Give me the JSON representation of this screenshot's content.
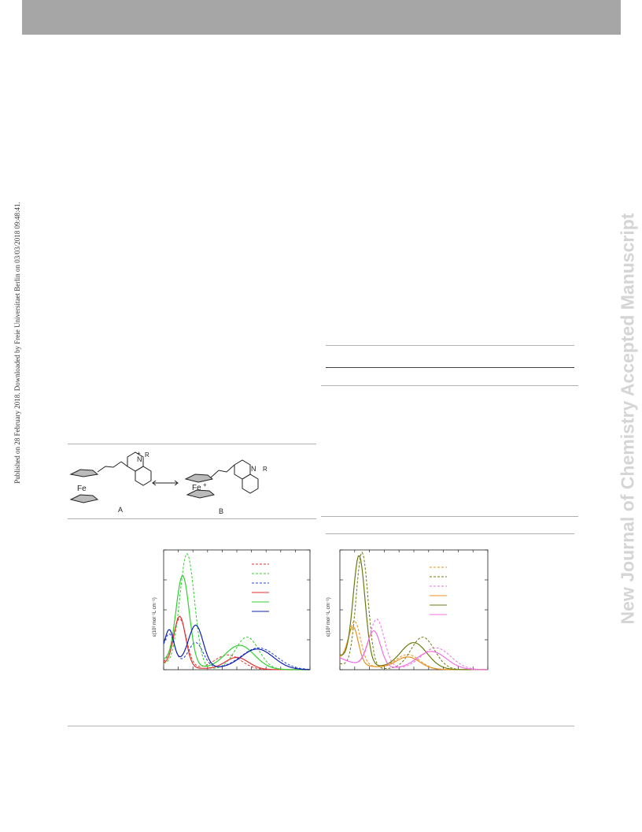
{
  "header": {
    "bar_color": "#a6a6a6"
  },
  "side_note": "Published on 28 February 2018. Downloaded by Freie Universitaet Berlin on 03/03/2018 09:48:41.",
  "watermark": "New Journal of Chemistry Accepted Manuscript",
  "scheme": {
    "label_a": "A",
    "label_b": "B",
    "metal_a": "Fe",
    "metal_b": "Fe",
    "charge": "+",
    "nitrogen": "N",
    "substituent": "R"
  },
  "chart_data": [
    {
      "type": "line",
      "ylabel": "ε(10³ mol⁻¹L cm⁻¹)",
      "series": [
        {
          "color": "#e03030",
          "style": "dashed"
        },
        {
          "color": "#30d030",
          "style": "dashed"
        },
        {
          "color": "#2040e0",
          "style": "dashed"
        },
        {
          "color": "#e03030",
          "style": "solid"
        },
        {
          "color": "#30d030",
          "style": "solid"
        },
        {
          "color": "#1020b0",
          "style": "solid"
        }
      ]
    },
    {
      "type": "line",
      "ylabel": "ε(10³ mol⁻¹L cm⁻¹)",
      "series": [
        {
          "color": "#e89020",
          "style": "dashed"
        },
        {
          "color": "#6a7a10",
          "style": "dashed"
        },
        {
          "color": "#f070e0",
          "style": "dashed"
        },
        {
          "color": "#e89020",
          "style": "solid"
        },
        {
          "color": "#6a7a10",
          "style": "solid"
        },
        {
          "color": "#f070e0",
          "style": "solid"
        }
      ]
    }
  ]
}
